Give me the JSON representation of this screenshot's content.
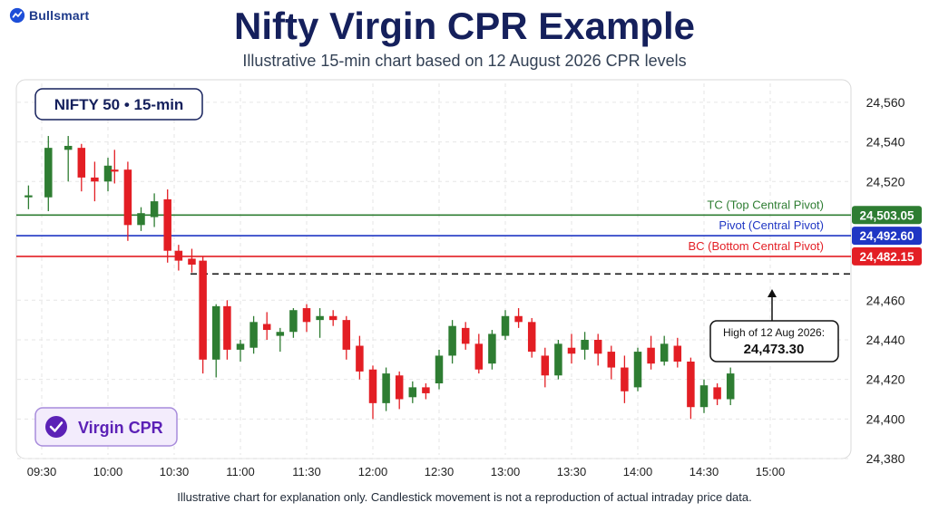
{
  "brand": {
    "name": "Bullsmart"
  },
  "header": {
    "title": "Nifty Virgin CPR Example",
    "subtitle": "Illustrative 15-min chart based on 12 August 2026 CPR levels"
  },
  "footer": {
    "note": "Illustrative chart for explanation only. Candlestick movement is not a reproduction of actual intraday price data."
  },
  "badges": {
    "symbol": "NIFTY 50 • 15-min",
    "virgin": "Virgin CPR",
    "virgin_icon": "check-circle-icon"
  },
  "colors": {
    "bull": "#2e7d32",
    "bear": "#e31e24",
    "tc": "#2e7d32",
    "pivot": "#1f36c4",
    "bc": "#e31e24",
    "title": "#15205c",
    "accent_purple": "#5b21b6"
  },
  "chart_data": {
    "type": "candlestick",
    "y_range": [
      24380,
      24565
    ],
    "y_ticks": [
      "24,560",
      "24,540",
      "24,520",
      "24,460",
      "24,440",
      "24,420",
      "24,400",
      "24,380"
    ],
    "y_tick_values": [
      24560,
      24540,
      24520,
      24460,
      24440,
      24420,
      24400,
      24380
    ],
    "x_tick_labels": [
      "09:30",
      "10:00",
      "10:30",
      "11:00",
      "11:30",
      "12:00",
      "12:30",
      "13:00",
      "13:30",
      "14:00",
      "14:30",
      "15:00"
    ],
    "levels": [
      {
        "label": "TC (Top Central Pivot)",
        "value": 24503.05,
        "value_label": "24,503.05",
        "color": "#2e7d32"
      },
      {
        "label": "Pivot (Central Pivot)",
        "value": 24492.6,
        "value_label": "24,492.60",
        "color": "#1f36c4"
      },
      {
        "label": "BC (Bottom Central Pivot)",
        "value": 24482.15,
        "value_label": "24,482.15",
        "color": "#e31e24"
      }
    ],
    "prev_high": {
      "label": "High of 12 Aug 2026:",
      "value": 24473.3,
      "value_label": "24,473.30"
    },
    "candles": [
      {
        "t": "09:24",
        "o": 24512,
        "h": 24518,
        "l": 24506,
        "c": 24513
      },
      {
        "t": "09:33",
        "o": 24512,
        "h": 24543,
        "l": 24505,
        "c": 24537
      },
      {
        "t": "09:42",
        "o": 24536,
        "h": 24543,
        "l": 24520,
        "c": 24538
      },
      {
        "t": "09:48",
        "o": 24537,
        "h": 24539,
        "l": 24515,
        "c": 24522
      },
      {
        "t": "09:54",
        "o": 24522,
        "h": 24530,
        "l": 24510,
        "c": 24520
      },
      {
        "t": "10:00",
        "o": 24520,
        "h": 24532,
        "l": 24515,
        "c": 24528
      },
      {
        "t": "10:03",
        "o": 24526,
        "h": 24536,
        "l": 24519,
        "c": 24525
      },
      {
        "t": "10:09",
        "o": 24526,
        "h": 24530,
        "l": 24490,
        "c": 24498
      },
      {
        "t": "10:15",
        "o": 24498,
        "h": 24507,
        "l": 24495,
        "c": 24504
      },
      {
        "t": "10:21",
        "o": 24502,
        "h": 24514,
        "l": 24497,
        "c": 24510
      },
      {
        "t": "10:27",
        "o": 24511,
        "h": 24516,
        "l": 24479,
        "c": 24485
      },
      {
        "t": "10:32",
        "o": 24485,
        "h": 24488,
        "l": 24475,
        "c": 24480
      },
      {
        "t": "10:38",
        "o": 24481,
        "h": 24486,
        "l": 24474,
        "c": 24478
      },
      {
        "t": "10:43",
        "o": 24480,
        "h": 24482,
        "l": 24423,
        "c": 24430
      },
      {
        "t": "10:49",
        "o": 24430,
        "h": 24458,
        "l": 24421,
        "c": 24457
      },
      {
        "t": "10:54",
        "o": 24457,
        "h": 24460,
        "l": 24430,
        "c": 24435
      },
      {
        "t": "11:00",
        "o": 24435,
        "h": 24440,
        "l": 24429,
        "c": 24438
      },
      {
        "t": "11:06",
        "o": 24436,
        "h": 24452,
        "l": 24433,
        "c": 24449
      },
      {
        "t": "11:12",
        "o": 24448,
        "h": 24454,
        "l": 24440,
        "c": 24445
      },
      {
        "t": "11:18",
        "o": 24442,
        "h": 24446,
        "l": 24434,
        "c": 24444
      },
      {
        "t": "11:24",
        "o": 24444,
        "h": 24456,
        "l": 24441,
        "c": 24455
      },
      {
        "t": "11:30",
        "o": 24456,
        "h": 24458,
        "l": 24444,
        "c": 24449
      },
      {
        "t": "11:36",
        "o": 24450,
        "h": 24456,
        "l": 24441,
        "c": 24452
      },
      {
        "t": "11:42",
        "o": 24452,
        "h": 24455,
        "l": 24447,
        "c": 24450
      },
      {
        "t": "11:48",
        "o": 24450,
        "h": 24452,
        "l": 24430,
        "c": 24435
      },
      {
        "t": "11:54",
        "o": 24437,
        "h": 24442,
        "l": 24420,
        "c": 24424
      },
      {
        "t": "12:00",
        "o": 24425,
        "h": 24427,
        "l": 24400,
        "c": 24408
      },
      {
        "t": "12:06",
        "o": 24408,
        "h": 24426,
        "l": 24404,
        "c": 24423
      },
      {
        "t": "12:12",
        "o": 24422,
        "h": 24424,
        "l": 24405,
        "c": 24410
      },
      {
        "t": "12:18",
        "o": 24411,
        "h": 24419,
        "l": 24408,
        "c": 24416
      },
      {
        "t": "12:24",
        "o": 24416,
        "h": 24418,
        "l": 24410,
        "c": 24413
      },
      {
        "t": "12:30",
        "o": 24418,
        "h": 24435,
        "l": 24415,
        "c": 24432
      },
      {
        "t": "12:36",
        "o": 24432,
        "h": 24450,
        "l": 24428,
        "c": 24447
      },
      {
        "t": "12:42",
        "o": 24446,
        "h": 24449,
        "l": 24435,
        "c": 24438
      },
      {
        "t": "12:48",
        "o": 24438,
        "h": 24443,
        "l": 24423,
        "c": 24425
      },
      {
        "t": "12:54",
        "o": 24428,
        "h": 24445,
        "l": 24425,
        "c": 24443
      },
      {
        "t": "13:00",
        "o": 24442,
        "h": 24455,
        "l": 24440,
        "c": 24452
      },
      {
        "t": "13:06",
        "o": 24452,
        "h": 24456,
        "l": 24446,
        "c": 24449
      },
      {
        "t": "13:12",
        "o": 24449,
        "h": 24451,
        "l": 24431,
        "c": 24434
      },
      {
        "t": "13:18",
        "o": 24432,
        "h": 24436,
        "l": 24416,
        "c": 24422
      },
      {
        "t": "13:24",
        "o": 24422,
        "h": 24440,
        "l": 24420,
        "c": 24438
      },
      {
        "t": "13:30",
        "o": 24436,
        "h": 24443,
        "l": 24428,
        "c": 24433
      },
      {
        "t": "13:36",
        "o": 24435,
        "h": 24444,
        "l": 24430,
        "c": 24440
      },
      {
        "t": "13:42",
        "o": 24440,
        "h": 24443,
        "l": 24427,
        "c": 24433
      },
      {
        "t": "13:48",
        "o": 24434,
        "h": 24437,
        "l": 24420,
        "c": 24426
      },
      {
        "t": "13:54",
        "o": 24426,
        "h": 24432,
        "l": 24408,
        "c": 24414
      },
      {
        "t": "14:00",
        "o": 24416,
        "h": 24436,
        "l": 24414,
        "c": 24434
      },
      {
        "t": "14:06",
        "o": 24436,
        "h": 24442,
        "l": 24425,
        "c": 24428
      },
      {
        "t": "14:12",
        "o": 24429,
        "h": 24442,
        "l": 24427,
        "c": 24438
      },
      {
        "t": "14:18",
        "o": 24437,
        "h": 24441,
        "l": 24426,
        "c": 24429
      },
      {
        "t": "14:24",
        "o": 24429,
        "h": 24431,
        "l": 24400,
        "c": 24406
      },
      {
        "t": "14:30",
        "o": 24406,
        "h": 24420,
        "l": 24403,
        "c": 24417
      },
      {
        "t": "14:36",
        "o": 24416,
        "h": 24418,
        "l": 24407,
        "c": 24410
      },
      {
        "t": "14:42",
        "o": 24410,
        "h": 24426,
        "l": 24407,
        "c": 24423
      }
    ]
  }
}
